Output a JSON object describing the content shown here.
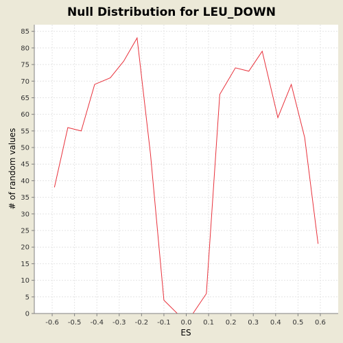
{
  "chart_data": {
    "type": "line",
    "title": "Null Distribution for LEU_DOWN",
    "xlabel": "ES",
    "ylabel": "# of random values",
    "xlim": [
      -0.68,
      0.68
    ],
    "ylim": [
      0,
      87
    ],
    "x_ticks": [
      -0.6,
      -0.5,
      -0.4,
      -0.3,
      -0.2,
      -0.1,
      0.0,
      0.1,
      0.2,
      0.3,
      0.4,
      0.5,
      0.6
    ],
    "x_tick_labels": [
      "-0.6",
      "-0.5",
      "-0.4",
      "-0.3",
      "-0.2",
      "-0.1",
      "0.0",
      "0.1",
      "0.2",
      "0.3",
      "0.4",
      "0.5",
      "0.6"
    ],
    "y_ticks": [
      0,
      5,
      10,
      15,
      20,
      25,
      30,
      35,
      40,
      45,
      50,
      55,
      60,
      65,
      70,
      75,
      80,
      85
    ],
    "y_tick_labels": [
      "0",
      "5",
      "10",
      "15",
      "20",
      "25",
      "30",
      "35",
      "40",
      "45",
      "50",
      "55",
      "60",
      "65",
      "70",
      "75",
      "80",
      "85"
    ],
    "grid": true,
    "series": [
      {
        "color": "#e8303a",
        "x": [
          -0.59,
          -0.53,
          -0.47,
          -0.41,
          -0.34,
          -0.28,
          -0.22,
          -0.16,
          -0.1,
          -0.04,
          0.03,
          0.09,
          0.15,
          0.22,
          0.28,
          0.34,
          0.41,
          0.47,
          0.53,
          0.59
        ],
        "y": [
          38,
          56,
          55,
          69,
          71,
          76,
          83,
          48,
          4,
          0,
          0,
          6,
          66,
          74,
          73,
          79,
          59,
          69,
          53,
          21
        ]
      }
    ],
    "colors": {
      "background": "#ece9d8",
      "plot_background": "#ffffff",
      "grid": "#e4e4e4",
      "axis": "#808080"
    }
  }
}
